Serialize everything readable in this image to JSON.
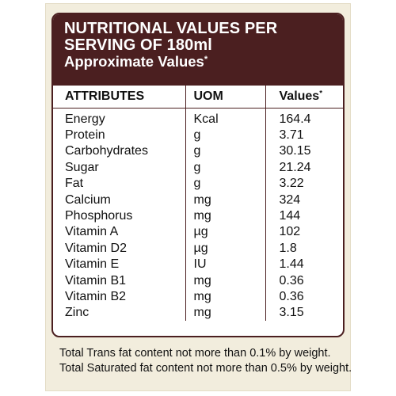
{
  "header": {
    "line1": "NUTRITIONAL VALUES PER",
    "line2": "SERVING OF 180ml",
    "line3": "Approximate Values",
    "asterisk": "*"
  },
  "columns": {
    "attributes": "ATTRIBUTES",
    "uom": "UOM",
    "values": "Values",
    "values_asterisk": "*"
  },
  "rows": [
    {
      "attribute": "Energy",
      "uom": "Kcal",
      "value": "164.4"
    },
    {
      "attribute": "Protein",
      "uom": "g",
      "value": "3.71"
    },
    {
      "attribute": "Carbohydrates",
      "uom": "g",
      "value": "30.15"
    },
    {
      "attribute": "Sugar",
      "uom": "g",
      "value": "21.24"
    },
    {
      "attribute": "Fat",
      "uom": "g",
      "value": "3.22"
    },
    {
      "attribute": "Calcium",
      "uom": "mg",
      "value": "324"
    },
    {
      "attribute": "Phosphorus",
      "uom": "mg",
      "value": "144"
    },
    {
      "attribute": "Vitamin A",
      "uom": "µg",
      "value": "102"
    },
    {
      "attribute": "Vitamin D2",
      "uom": "µg",
      "value": "1.8"
    },
    {
      "attribute": "Vitamin E",
      "uom": "IU",
      "value": "1.44"
    },
    {
      "attribute": "Vitamin B1",
      "uom": "mg",
      "value": "0.36"
    },
    {
      "attribute": "Vitamin B2",
      "uom": "mg",
      "value": "0.36"
    },
    {
      "attribute": "Zinc",
      "uom": "mg",
      "value": "3.15"
    }
  ],
  "notes": [
    "Total Trans fat content not more than 0.1% by weight.",
    "Total Saturated fat content not more than 0.5% by weight."
  ],
  "colors": {
    "header_bg": "#4b1f20",
    "outer_bg": "#f2eddd"
  }
}
